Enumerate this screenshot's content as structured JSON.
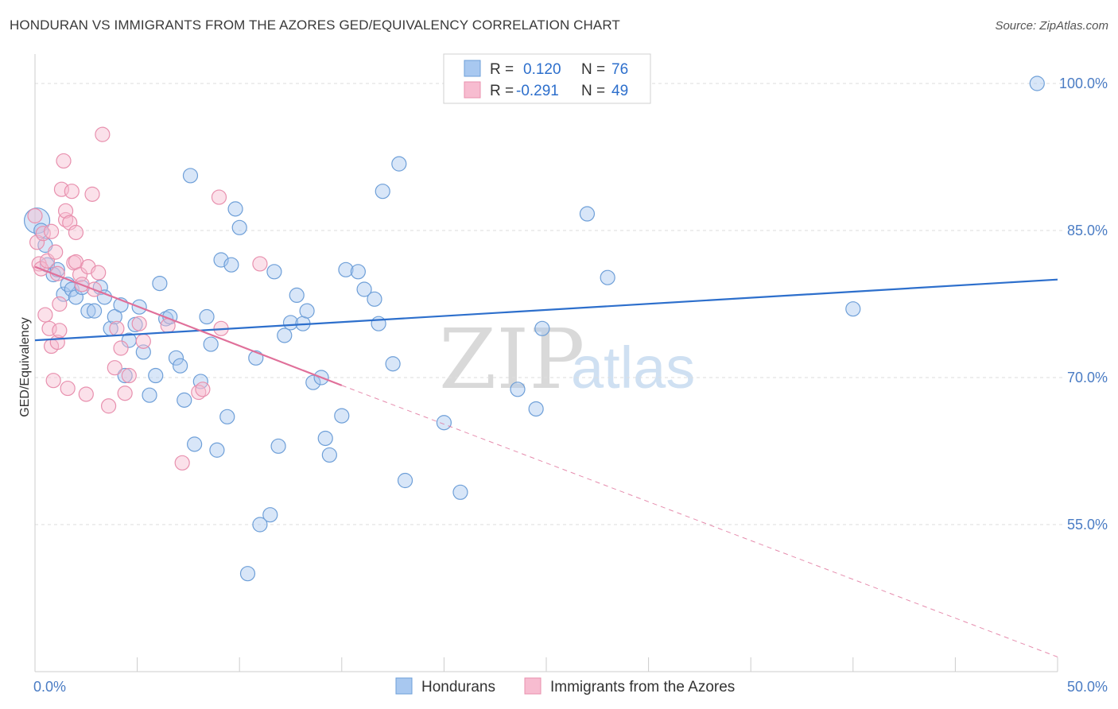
{
  "title": "HONDURAN VS IMMIGRANTS FROM THE AZORES GED/EQUIVALENCY CORRELATION CHART",
  "source": "Source: ZipAtlas.com",
  "watermark": {
    "zip": "ZIP",
    "atlas": "atlas"
  },
  "chart_data": {
    "type": "scatter",
    "ylabel": "GED/Equivalency",
    "xlim": [
      0,
      50
    ],
    "ylim": [
      40,
      103
    ],
    "x_tick_labels": [
      {
        "value": 0,
        "label": "0.0%"
      },
      {
        "value": 50,
        "label": "50.0%"
      }
    ],
    "y_tick_labels": [
      {
        "value": 100,
        "label": "100.0%"
      },
      {
        "value": 85,
        "label": "85.0%"
      },
      {
        "value": 70,
        "label": "70.0%"
      },
      {
        "value": 55,
        "label": "55.0%"
      }
    ],
    "grid": "horizontal dashed",
    "legend_position": "bottom-center",
    "stats": [
      {
        "r_label": "R =",
        "r_value": "0.120",
        "n_label": "N =",
        "n_value": "76"
      },
      {
        "r_label": "R =",
        "r_value": "-0.291",
        "n_label": "N =",
        "n_value": "49"
      }
    ],
    "series": [
      {
        "name": "Hondurans",
        "color": "#a8c8f0",
        "stroke": "#6e9fd8",
        "trend": {
          "x0": 0,
          "y0": 73.8,
          "x1": 50,
          "y1": 80.0,
          "color": "#2d6fcc"
        },
        "points": [
          [
            0.1,
            86.0
          ],
          [
            0.3,
            85.0
          ],
          [
            0.5,
            83.5
          ],
          [
            0.6,
            81.5
          ],
          [
            0.9,
            80.5
          ],
          [
            1.1,
            81.0
          ],
          [
            1.4,
            78.5
          ],
          [
            1.6,
            79.5
          ],
          [
            1.8,
            79.0
          ],
          [
            2.0,
            78.2
          ],
          [
            2.3,
            79.2
          ],
          [
            2.6,
            76.8
          ],
          [
            2.9,
            76.8
          ],
          [
            3.2,
            79.2
          ],
          [
            3.4,
            78.2
          ],
          [
            3.7,
            75.0
          ],
          [
            3.9,
            76.2
          ],
          [
            4.2,
            77.4
          ],
          [
            4.4,
            70.2
          ],
          [
            4.6,
            73.8
          ],
          [
            4.9,
            75.4
          ],
          [
            5.1,
            77.2
          ],
          [
            5.3,
            72.6
          ],
          [
            5.6,
            68.2
          ],
          [
            5.9,
            70.2
          ],
          [
            6.1,
            79.6
          ],
          [
            6.4,
            76.0
          ],
          [
            6.6,
            76.2
          ],
          [
            6.9,
            72.0
          ],
          [
            7.1,
            71.2
          ],
          [
            7.3,
            67.7
          ],
          [
            7.6,
            90.6
          ],
          [
            7.8,
            63.2
          ],
          [
            8.1,
            69.6
          ],
          [
            8.4,
            76.2
          ],
          [
            8.6,
            73.4
          ],
          [
            8.9,
            62.6
          ],
          [
            9.1,
            82.0
          ],
          [
            9.4,
            66.0
          ],
          [
            9.6,
            81.5
          ],
          [
            9.8,
            87.2
          ],
          [
            10.0,
            85.3
          ],
          [
            10.4,
            50.0
          ],
          [
            10.8,
            72.0
          ],
          [
            11.0,
            55.0
          ],
          [
            11.5,
            56.0
          ],
          [
            11.7,
            80.8
          ],
          [
            11.9,
            63.0
          ],
          [
            12.2,
            74.3
          ],
          [
            12.5,
            75.6
          ],
          [
            12.8,
            78.4
          ],
          [
            13.1,
            75.5
          ],
          [
            13.3,
            76.8
          ],
          [
            13.6,
            69.5
          ],
          [
            14.0,
            70.0
          ],
          [
            14.2,
            63.8
          ],
          [
            14.4,
            62.1
          ],
          [
            15.0,
            66.1
          ],
          [
            15.2,
            81.0
          ],
          [
            15.8,
            80.8
          ],
          [
            16.1,
            79.0
          ],
          [
            16.6,
            78.0
          ],
          [
            16.8,
            75.5
          ],
          [
            17.0,
            89.0
          ],
          [
            17.5,
            71.4
          ],
          [
            17.8,
            91.8
          ],
          [
            18.1,
            59.5
          ],
          [
            20.0,
            65.4
          ],
          [
            20.8,
            58.3
          ],
          [
            23.6,
            68.8
          ],
          [
            24.5,
            66.8
          ],
          [
            24.8,
            75.0
          ],
          [
            27.0,
            86.7
          ],
          [
            28.0,
            80.2
          ],
          [
            40.0,
            77.0
          ],
          [
            49.0,
            100.0
          ]
        ],
        "point_sizes": [
          [
            0.1,
            86.0,
            16
          ]
        ]
      },
      {
        "name": "Immigrants from the Azores",
        "color": "#f7bcd0",
        "stroke": "#e890ae",
        "trend": {
          "x0": 0,
          "y0": 81.3,
          "x1": 15,
          "y1": 69.2,
          "color": "#e0709a",
          "dash_to": {
            "x": 50,
            "y": 41.5
          }
        },
        "points": [
          [
            0.1,
            83.8
          ],
          [
            0.2,
            81.6
          ],
          [
            0.3,
            81.1
          ],
          [
            0.4,
            84.7
          ],
          [
            0.5,
            76.4
          ],
          [
            0.6,
            81.9
          ],
          [
            0.7,
            75.0
          ],
          [
            0.8,
            84.9
          ],
          [
            0.8,
            73.2
          ],
          [
            0.9,
            69.7
          ],
          [
            1.0,
            82.8
          ],
          [
            1.1,
            80.6
          ],
          [
            1.1,
            73.6
          ],
          [
            1.2,
            77.5
          ],
          [
            1.2,
            74.8
          ],
          [
            1.3,
            89.2
          ],
          [
            1.4,
            92.1
          ],
          [
            1.5,
            86.1
          ],
          [
            1.5,
            87.0
          ],
          [
            1.6,
            68.9
          ],
          [
            1.7,
            85.8
          ],
          [
            1.8,
            89.0
          ],
          [
            1.9,
            81.7
          ],
          [
            2.0,
            81.8
          ],
          [
            2.0,
            84.8
          ],
          [
            2.2,
            80.5
          ],
          [
            2.3,
            79.5
          ],
          [
            2.5,
            68.3
          ],
          [
            2.6,
            81.3
          ],
          [
            2.8,
            88.7
          ],
          [
            2.9,
            79.0
          ],
          [
            3.1,
            80.7
          ],
          [
            3.3,
            94.8
          ],
          [
            3.6,
            67.1
          ],
          [
            3.9,
            71.0
          ],
          [
            4.0,
            75.0
          ],
          [
            4.2,
            73.0
          ],
          [
            4.4,
            68.4
          ],
          [
            4.6,
            70.2
          ],
          [
            5.1,
            75.5
          ],
          [
            5.3,
            73.7
          ],
          [
            6.5,
            75.3
          ],
          [
            7.2,
            61.3
          ],
          [
            8.0,
            68.5
          ],
          [
            8.2,
            68.8
          ],
          [
            9.0,
            88.4
          ],
          [
            9.1,
            75.0
          ],
          [
            11.0,
            81.6
          ],
          [
            0.0,
            86.5
          ]
        ]
      }
    ]
  }
}
